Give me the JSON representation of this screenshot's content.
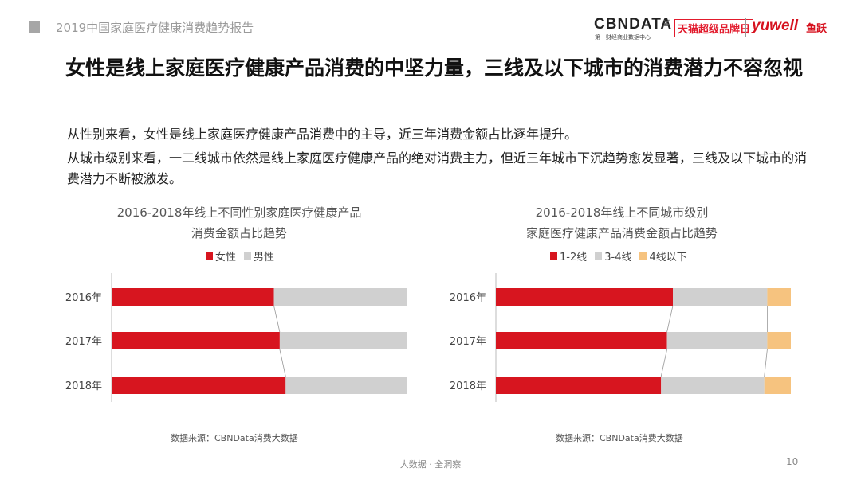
{
  "header": {
    "report_title": "2019中国家庭医疗健康消费趋势报告",
    "logo_cbn": "CBNDATA",
    "logo_cbn_sub": "第一财经商业数据中心",
    "logo_x": "×",
    "logo_tmall": "天猫超级品牌日",
    "logo_yuwell": "yuwell",
    "logo_yuwell_cn": "鱼跃"
  },
  "headline": "女性是线上家庭医疗健康产品消费的中坚力量，三线及以下城市的消费潜力不容忽视",
  "descriptions": [
    "从性别来看，女性是线上家庭医疗健康产品消费中的主导，近三年消费金额占比逐年提升。",
    "从城市级别来看，一二线城市依然是线上家庭医疗健康产品的绝对消费主力，但近三年城市下沉趋势愈发显著，三线及以下城市的消费潜力不断被激发。"
  ],
  "footer": {
    "text": "大数据 · 全洞察",
    "page": "10"
  },
  "chart_data": [
    {
      "type": "bar",
      "orientation": "horizontal",
      "stacked": "percent",
      "title_lines": [
        "2016-2018年线上不同性别家庭医疗健康产品",
        "消费金额占比趋势"
      ],
      "legend_position": "top",
      "categories": [
        "2016年",
        "2017年",
        "2018年"
      ],
      "series": [
        {
          "name": "女性",
          "color": "#d7151f",
          "values": [
            0.55,
            0.57,
            0.59
          ]
        },
        {
          "name": "男性",
          "color": "#d0d0d0",
          "values": [
            0.45,
            0.43,
            0.41
          ]
        }
      ],
      "xlim": [
        0,
        1
      ],
      "grid": false,
      "source": "数据来源：CBNData消费大数据"
    },
    {
      "type": "bar",
      "orientation": "horizontal",
      "stacked": "percent",
      "title_lines": [
        "2016-2018年线上不同城市级别",
        "家庭医疗健康产品消费金额占比趋势"
      ],
      "legend_position": "top",
      "categories": [
        "2016年",
        "2017年",
        "2018年"
      ],
      "series": [
        {
          "name": "1-2线",
          "color": "#d7151f",
          "values": [
            0.6,
            0.58,
            0.56
          ]
        },
        {
          "name": "3-4线",
          "color": "#d0d0d0",
          "values": [
            0.32,
            0.34,
            0.35
          ]
        },
        {
          "name": "4线以下",
          "color": "#f6c37f",
          "values": [
            0.08,
            0.08,
            0.09
          ]
        }
      ],
      "xlim": [
        0,
        1
      ],
      "grid": false,
      "source": "数据来源：CBNData消费大数据"
    }
  ]
}
